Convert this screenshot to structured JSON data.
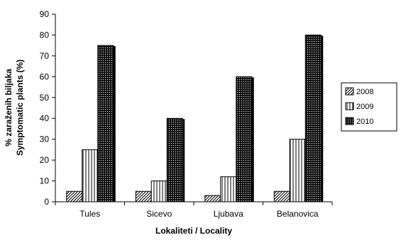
{
  "chart_data": {
    "type": "bar",
    "categories": [
      "Tules",
      "Sicevo",
      "Ljubava",
      "Belanovica"
    ],
    "series": [
      {
        "name": "2008",
        "values": [
          5,
          5,
          3,
          5
        ],
        "pattern": "diagonal-hatch"
      },
      {
        "name": "2009",
        "values": [
          25,
          10,
          12,
          30
        ],
        "pattern": "vertical-lines"
      },
      {
        "name": "2010",
        "values": [
          75,
          40,
          60,
          80
        ],
        "pattern": "dense-crosshatch"
      }
    ],
    "title": "",
    "xlabel": "Lokaliteti / Locality",
    "ylabel_line1": "% zaraženih biljaka",
    "ylabel_line2": "Symptomatic plants (%)",
    "ylim": [
      0,
      90
    ],
    "yticks": [
      0,
      10,
      20,
      30,
      40,
      50,
      60,
      70,
      80,
      90
    ],
    "grid": false,
    "legend_position": "right",
    "colors": {
      "bar_outline": "#000000",
      "bar_fill": "#ffffff",
      "shadow": "#000000"
    }
  }
}
